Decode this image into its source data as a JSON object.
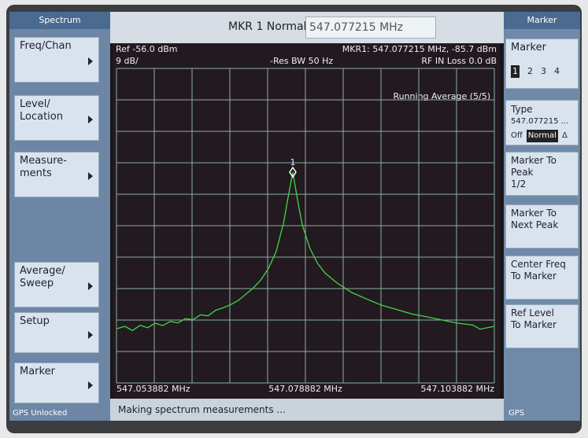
{
  "left_panel": {
    "title": "Spectrum",
    "buttons": [
      [
        "Freq/Chan"
      ],
      [
        "Level/",
        "Location"
      ],
      [
        "Measure-",
        "ments"
      ],
      [
        "Average/",
        "Sweep"
      ],
      [
        "Setup"
      ],
      [
        "Marker"
      ]
    ],
    "status": "GPS Unlocked"
  },
  "header": {
    "marker_label": "MKR 1 Normal",
    "marker_value": "547.077215 MHz"
  },
  "plot": {
    "ref": "Ref -56.0 dBm",
    "scale": "9 dB/",
    "rbw": "-Res BW 50 Hz",
    "marker_readout": "MKR1: 547.077215 MHz, -85.7 dBm",
    "rf_loss": "RF IN Loss 0.0 dB",
    "average": "Running Average (5/5)",
    "marker_tag": "1",
    "x_labels": [
      "547.053882 MHz",
      "547.078882 MHz",
      "547.103882 MHz"
    ],
    "xlim": [
      547.053882,
      547.103882
    ],
    "ylim": [
      -146,
      -56
    ],
    "xticks": [
      547.053882,
      547.058882,
      547.063882,
      547.068882,
      547.073882,
      547.078882,
      547.083882,
      547.088882,
      547.093882,
      547.098882,
      547.103882
    ],
    "yticks": [
      -56,
      -65,
      -74,
      -83,
      -92,
      -101,
      -110,
      -119,
      -128,
      -137,
      -146
    ],
    "trace": {
      "x": [
        547.053882,
        547.055,
        547.056,
        547.057,
        547.058,
        547.059,
        547.06,
        547.061,
        547.062,
        547.063,
        547.064,
        547.065,
        547.066,
        547.067,
        547.068,
        547.069,
        547.07,
        547.071,
        547.072,
        547.073,
        547.074,
        547.075,
        547.076,
        547.0765,
        547.077215,
        547.078,
        547.0785,
        547.0795,
        547.0805,
        547.0815,
        547.083,
        547.085,
        547.087,
        547.089,
        547.091,
        547.093,
        547.095,
        547.097,
        547.099,
        547.101,
        547.102,
        547.103882
      ],
      "values": [
        -130.5,
        -129.8,
        -131,
        -129.5,
        -130.2,
        -128.9,
        -129.6,
        -128.4,
        -128.8,
        -127.6,
        -127.9,
        -126.5,
        -126.8,
        -125.2,
        -124.5,
        -123.6,
        -122.4,
        -120.6,
        -118.8,
        -116.5,
        -113.2,
        -108.5,
        -100.2,
        -94,
        -85.7,
        -95.5,
        -101,
        -107.6,
        -111.8,
        -114.6,
        -117.3,
        -120.1,
        -122,
        -123.8,
        -125,
        -126.3,
        -127.1,
        -128,
        -128.9,
        -129.4,
        -130.6,
        -129.8
      ]
    },
    "marker": {
      "x": 547.077215,
      "value": -85.7
    }
  },
  "right_panel": {
    "title": "Marker",
    "marker_button": "Marker",
    "marker_numbers": [
      "1",
      "2",
      "3",
      "4"
    ],
    "type_label": "Type",
    "type_value": "547.077215 ...",
    "type_options": [
      "Off",
      "Normal",
      "Δ"
    ],
    "buttons": [
      [
        "Marker To",
        "Peak",
        "1/2"
      ],
      [
        "Marker To",
        "Next Peak"
      ],
      [
        "Center Freq",
        "To Marker"
      ],
      [
        "Ref Level",
        "To Marker"
      ]
    ],
    "status": "GPS"
  },
  "status_bar": "Making spectrum measurements ..."
}
